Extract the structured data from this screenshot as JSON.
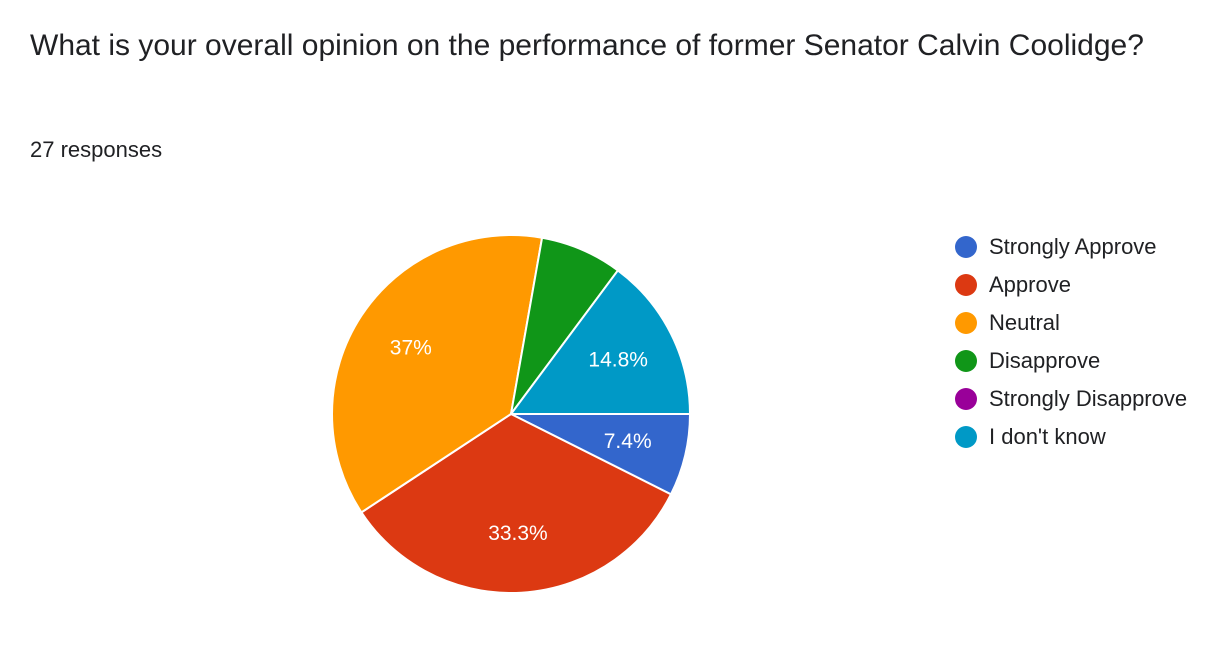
{
  "question": {
    "title": "What is your overall opinion on the performance of former Senator Calvin Coolidge?",
    "responses": "27 responses"
  },
  "chart_data": {
    "type": "pie",
    "categories": [
      "Strongly Approve",
      "Approve",
      "Neutral",
      "Disapprove",
      "Strongly Disapprove",
      "I don't know"
    ],
    "values": [
      2,
      9,
      10,
      2,
      0,
      4
    ],
    "total": 27,
    "labels": [
      "7.4%",
      "33.3%",
      "37%",
      "",
      "",
      "14.8%"
    ],
    "colors": [
      "#3366cc",
      "#dc3912",
      "#ff9900",
      "#109618",
      "#990099",
      "#0099c6"
    ],
    "legend_position": "right"
  }
}
